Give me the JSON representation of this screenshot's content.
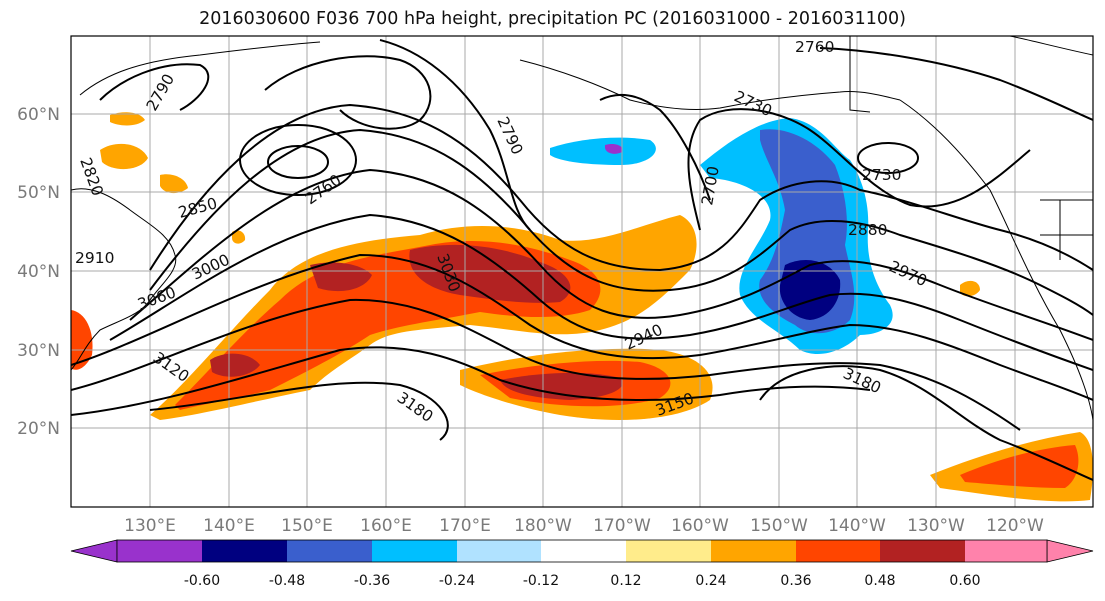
{
  "title": "2016030600 F036 700 hPa height, precipitation PC (2016031000 - 2016031100)",
  "latitude_labels": [
    "60°N",
    "50°N",
    "40°N",
    "30°N",
    "20°N"
  ],
  "longitude_labels": [
    "130°E",
    "140°E",
    "150°E",
    "160°E",
    "170°E",
    "180°W",
    "170°W",
    "160°W",
    "150°W",
    "140°W",
    "130°W",
    "120°W"
  ],
  "colorbar": {
    "tick_labels": [
      "-0.60",
      "-0.48",
      "-0.36",
      "-0.24",
      "-0.12",
      "0.12",
      "0.24",
      "0.36",
      "0.48",
      "0.60"
    ],
    "colors": [
      "#9932cc",
      "#000080",
      "#3a5fcd",
      "#00bfff",
      "#b0e2ff",
      "#ffffff",
      "#ffec8b",
      "#ffa500",
      "#ff4500",
      "#b22222",
      "#ff82ab"
    ]
  },
  "contour_labels": [
    "2760",
    "2730",
    "2790",
    "2790",
    "2820",
    "2760",
    "2700",
    "2730",
    "2850",
    "2880",
    "2910",
    "3000",
    "2970",
    "3030",
    "3060",
    "2940",
    "3120",
    "3150",
    "3180",
    "3180"
  ]
}
